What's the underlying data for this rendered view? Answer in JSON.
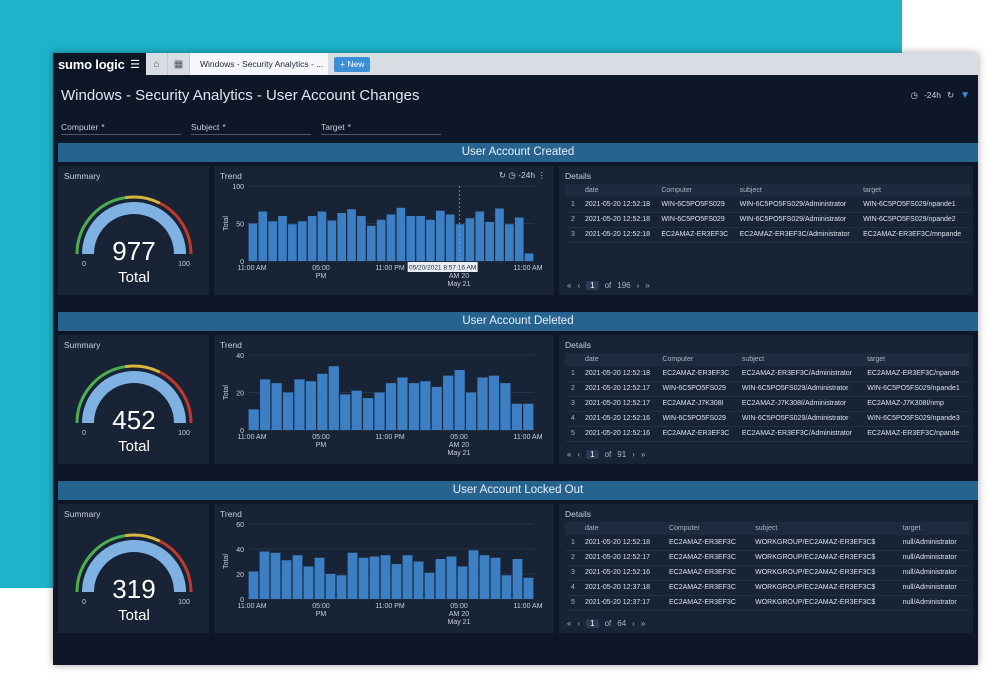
{
  "topbar": {
    "brand": "sumo logic",
    "tab_label": "Windows - Security Analytics - ...",
    "new_label": "+ New"
  },
  "page": {
    "title": "Windows - Security Analytics - User Account Changes",
    "time_range": "-24h"
  },
  "filters": [
    {
      "label": "Computer",
      "value": "*"
    },
    {
      "label": "Subject",
      "value": "*"
    },
    {
      "label": "Target",
      "value": "*"
    }
  ],
  "labels": {
    "summary": "Summary",
    "trend": "Trend",
    "details": "Details",
    "total": "Total",
    "of": "of",
    "time": "-24h"
  },
  "sections": [
    {
      "title": "User Account Created",
      "gauge": {
        "value": 977,
        "min": 0,
        "max": 100,
        "label": "Total"
      },
      "trend": {
        "y_label": "Total",
        "y_max": 100,
        "y_ticks": [
          0,
          50,
          100
        ],
        "x_ticks": [
          "11:00 AM",
          "05:00 PM",
          "11:00 PM",
          "05:00 AM May 20",
          "11:00 AM May 21"
        ],
        "values": [
          50,
          66,
          53,
          60,
          49,
          53,
          60,
          66,
          54,
          64,
          69,
          60,
          47,
          55,
          62,
          71,
          60,
          60,
          55,
          67,
          62,
          49,
          57,
          66,
          52,
          70,
          49,
          58,
          10
        ],
        "tooltip": "05/20/2021 8:57:16 AM"
      },
      "details": {
        "columns": [
          "",
          "date",
          "Computer",
          "subject",
          "target"
        ],
        "rows": [
          [
            "1",
            "2021-05-20 12:52:18",
            "WIN-6C5PO5FS029",
            "WIN-6C5PO5FS029/Administrator",
            "WIN-6C5PO5FS029/npande1"
          ],
          [
            "2",
            "2021-05-20 12:52:18",
            "WIN-6C5PO5FS029",
            "WIN-6C5PO5FS029/Administrator",
            "WIN-6C5PO5FS029/npande2"
          ],
          [
            "3",
            "2021-05-20 12:52:18",
            "EC2AMAZ-ER3EF3C",
            "EC2AMAZ-ER3EF3C/Administrator",
            "EC2AMAZ-ER3EF3C/mnpande"
          ]
        ],
        "page": "1",
        "total_pages": "196"
      }
    },
    {
      "title": "User Account Deleted",
      "gauge": {
        "value": 452,
        "min": 0,
        "max": 100,
        "label": "Total"
      },
      "trend": {
        "y_label": "Total",
        "y_max": 40,
        "y_ticks": [
          0,
          20,
          40
        ],
        "x_ticks": [
          "11:00 AM",
          "05:00 PM",
          "11:00 PM",
          "05:00 AM May 20",
          "11:00 AM May 21"
        ],
        "values": [
          11,
          27,
          25,
          20,
          27,
          26,
          30,
          34,
          19,
          21,
          17,
          20,
          25,
          28,
          25,
          26,
          23,
          29,
          32,
          20,
          28,
          29,
          25,
          14,
          14
        ],
        "tooltip": ""
      },
      "details": {
        "columns": [
          "",
          "date",
          "Computer",
          "subject",
          "target"
        ],
        "rows": [
          [
            "1",
            "2021-05-20 12:52:18",
            "EC2AMAZ-ER3EF3C",
            "EC2AMAZ-ER3EF3C/Administrator",
            "EC2AMAZ-ER3EF3C/npande"
          ],
          [
            "2",
            "2021-05-20 12:52:17",
            "WIN-6C5PO5FS029",
            "WIN-6C5PO5FS029/Administrator",
            "WIN-6C5PO5FS029/npande1"
          ],
          [
            "3",
            "2021-05-20 12:52:17",
            "EC2AMAZ-J7K308I",
            "EC2AMAZ-J7K308I/Administrator",
            "EC2AMAZ-J7K308I/nmp"
          ],
          [
            "4",
            "2021-05-20 12:52:16",
            "WIN-6C5PO5FS029",
            "WIN-6C5PO5FS029/Administrator",
            "WIN-6C5PO5FS029/npande3"
          ],
          [
            "5",
            "2021-05-20 12:52:16",
            "EC2AMAZ-ER3EF3C",
            "EC2AMAZ-ER3EF3C/Administrator",
            "EC2AMAZ-ER3EF3C/npande"
          ]
        ],
        "page": "1",
        "total_pages": "91"
      }
    },
    {
      "title": "User Account Locked Out",
      "gauge": {
        "value": 319,
        "min": 0,
        "max": 100,
        "label": "Total"
      },
      "trend": {
        "y_label": "Total",
        "y_max": 60,
        "y_ticks": [
          0,
          20,
          40,
          60
        ],
        "x_ticks": [
          "11:00 AM",
          "05:00 PM",
          "11:00 PM",
          "05:00 AM May 20",
          "11:00 AM May 21"
        ],
        "values": [
          22,
          38,
          37,
          31,
          35,
          26,
          33,
          20,
          19,
          37,
          33,
          34,
          35,
          28,
          35,
          30,
          21,
          32,
          34,
          26,
          39,
          35,
          33,
          19,
          32,
          17
        ],
        "tooltip": ""
      },
      "details": {
        "columns": [
          "",
          "date",
          "Computer",
          "subject",
          "target"
        ],
        "rows": [
          [
            "1",
            "2021-05-20 12:52:18",
            "EC2AMAZ-ER3EF3C",
            "WORKGROUP/EC2AMAZ-ER3EF3C$",
            "null/Administrator"
          ],
          [
            "2",
            "2021-05-20 12:52:17",
            "EC2AMAZ-ER3EF3C",
            "WORKGROUP/EC2AMAZ-ER3EF3C$",
            "null/Administrator"
          ],
          [
            "3",
            "2021-05-20 12:52:16",
            "EC2AMAZ-ER3EF3C",
            "WORKGROUP/EC2AMAZ-ER3EF3C$",
            "null/Administrator"
          ],
          [
            "4",
            "2021-05-20 12:37:18",
            "EC2AMAZ-ER3EF3C",
            "WORKGROUP/EC2AMAZ-ER3EF3C$",
            "null/Administrator"
          ],
          [
            "5",
            "2021-05-20 12:37:17",
            "EC2AMAZ-ER3EF3C",
            "WORKGROUP/EC2AMAZ-ER3EF3C$",
            "null/Administrator"
          ]
        ],
        "page": "1",
        "total_pages": "64"
      }
    }
  ],
  "colors": {
    "bar": "#3d7fc4",
    "gauge_fill": "#7fb1e3",
    "gauge_track": "#2b3d55",
    "gauge_red": "#c0392b",
    "gauge_yellow": "#d8b640",
    "gauge_green": "#4caf50"
  }
}
